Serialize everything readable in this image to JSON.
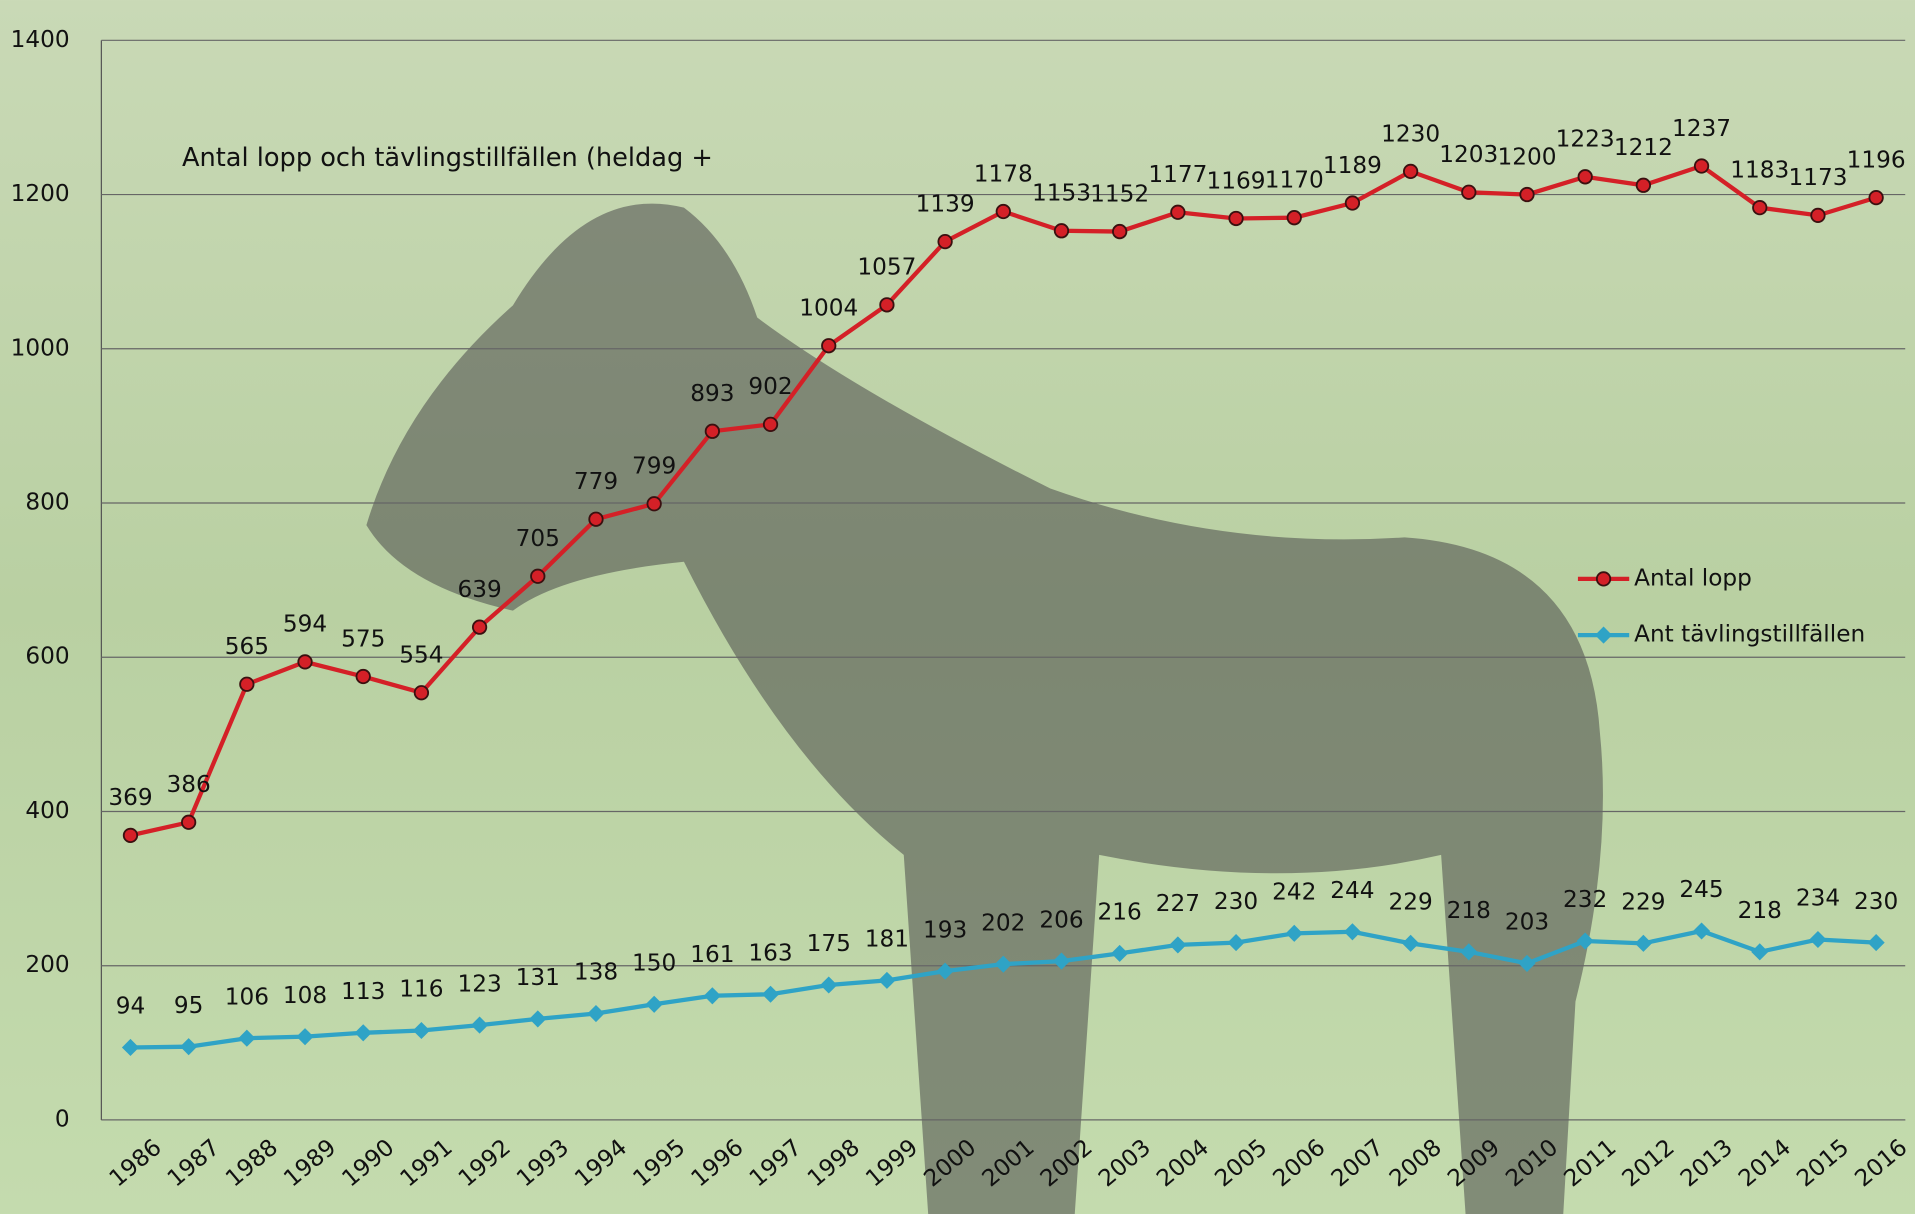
{
  "chart_data": {
    "type": "line",
    "title": "Antal lopp och tävlingstillfällen (heldag +",
    "categories": [
      "1986",
      "1987",
      "1988",
      "1989",
      "1990",
      "1991",
      "1992",
      "1993",
      "1994",
      "1995",
      "1996",
      "1997",
      "1998",
      "1999",
      "2000",
      "2001",
      "2002",
      "2003",
      "2004",
      "2005",
      "2006",
      "2007",
      "2008",
      "2009",
      "2010",
      "2011",
      "2012",
      "2013",
      "2014",
      "2015",
      "2016"
    ],
    "series": [
      {
        "name": "Antal lopp",
        "color": "#d42027",
        "marker": "circle",
        "values": [
          369,
          386,
          565,
          594,
          575,
          554,
          639,
          705,
          779,
          799,
          893,
          902,
          1004,
          1057,
          1139,
          1178,
          1153,
          1152,
          1177,
          1169,
          1170,
          1189,
          1230,
          1203,
          1200,
          1223,
          1212,
          1237,
          1183,
          1173,
          1196
        ]
      },
      {
        "name": "Ant tävlingstillfällen",
        "color": "#2fa3c6",
        "marker": "diamond",
        "values": [
          94,
          95,
          106,
          108,
          113,
          116,
          123,
          131,
          138,
          150,
          161,
          163,
          175,
          181,
          193,
          202,
          206,
          216,
          227,
          230,
          242,
          244,
          229,
          218,
          203,
          232,
          229,
          245,
          218,
          234,
          230
        ]
      }
    ],
    "ylim": [
      0,
      1400
    ],
    "yticks": [
      0,
      200,
      400,
      600,
      800,
      1000,
      1200,
      1400
    ],
    "grid": true,
    "legend": "right"
  }
}
